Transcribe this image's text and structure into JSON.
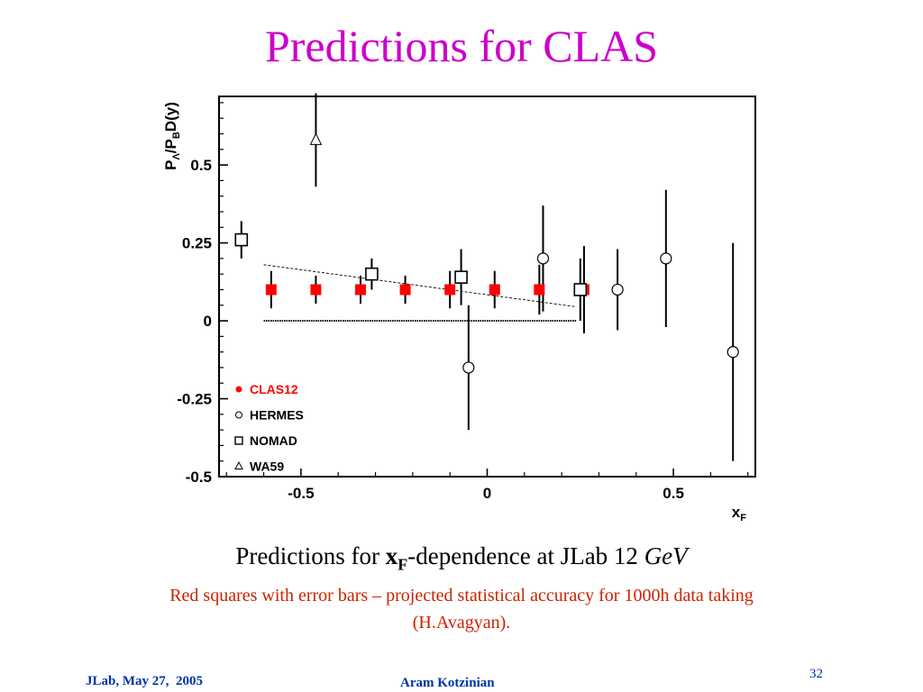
{
  "title": "Predictions for CLAS",
  "caption": {
    "prefix": "Predictions for ",
    "var_main": "x",
    "var_sub": "F",
    "middle": "-dependence at JLab 12 ",
    "unit": "GeV"
  },
  "subcaption": "Red squares with error bars – projected statistical accuracy for 1000h data taking (H.Avagyan).",
  "footer": {
    "left": "JLab, May 27,  2005",
    "center": "Aram Kotzinian",
    "page": "32"
  },
  "colors": {
    "title": "#cc00cc",
    "clas12": "#ff0000",
    "subcaption": "#cc2200",
    "footer": "#0033aa"
  },
  "chart_data": {
    "type": "scatter",
    "xlabel_main": "x",
    "xlabel_sub": "F",
    "ylabel_parts": [
      "P",
      "Λ",
      "/P",
      "B",
      "D(y)"
    ],
    "xlim": [
      -0.72,
      0.72
    ],
    "ylim": [
      -0.5,
      0.72
    ],
    "xticks": [
      -0.5,
      0,
      0.5
    ],
    "xtick_labels": [
      "-0.5",
      "0",
      "0.5"
    ],
    "yticks": [
      -0.5,
      -0.25,
      0,
      0.25,
      0.5
    ],
    "ytick_labels": [
      "-0.5",
      "-0.25",
      "0",
      "0.25",
      "0.5"
    ],
    "legend_position": "bottom-left",
    "series": [
      {
        "name": "CLAS12",
        "marker": "filled-square",
        "points": [
          {
            "x": -0.58,
            "y": 0.1,
            "err": 0.06
          },
          {
            "x": -0.46,
            "y": 0.1,
            "err": 0.045
          },
          {
            "x": -0.34,
            "y": 0.1,
            "err": 0.045
          },
          {
            "x": -0.22,
            "y": 0.1,
            "err": 0.045
          },
          {
            "x": -0.1,
            "y": 0.1,
            "err": 0.06
          },
          {
            "x": 0.02,
            "y": 0.1,
            "err": 0.06
          },
          {
            "x": 0.14,
            "y": 0.1,
            "err": 0.08
          },
          {
            "x": 0.26,
            "y": 0.1,
            "err": 0.14
          }
        ]
      },
      {
        "name": "HERMES",
        "marker": "open-circle",
        "points": [
          {
            "x": -0.05,
            "y": -0.15,
            "err": 0.2
          },
          {
            "x": 0.15,
            "y": 0.2,
            "err": 0.17
          },
          {
            "x": 0.35,
            "y": 0.1,
            "err": 0.13
          },
          {
            "x": 0.48,
            "y": 0.2,
            "err": 0.22
          },
          {
            "x": 0.66,
            "y": -0.1,
            "err": 0.35
          }
        ]
      },
      {
        "name": "NOMAD",
        "marker": "open-square",
        "points": [
          {
            "x": -0.66,
            "y": 0.26,
            "err": 0.06
          },
          {
            "x": -0.31,
            "y": 0.15,
            "err": 0.05
          },
          {
            "x": -0.07,
            "y": 0.14,
            "err": 0.09
          },
          {
            "x": 0.25,
            "y": 0.1,
            "err": 0.1
          }
        ]
      },
      {
        "name": "WA59",
        "marker": "open-triangle",
        "points": [
          {
            "x": -0.46,
            "y": 0.58,
            "err": 0.15
          }
        ]
      }
    ],
    "lines": [
      {
        "style": "dashed",
        "x": [
          -0.6,
          0.24
        ],
        "y": [
          0.18,
          0.045
        ]
      },
      {
        "style": "dotted",
        "x": [
          -0.6,
          0.24
        ],
        "y": [
          0.0,
          0.0
        ]
      }
    ]
  }
}
